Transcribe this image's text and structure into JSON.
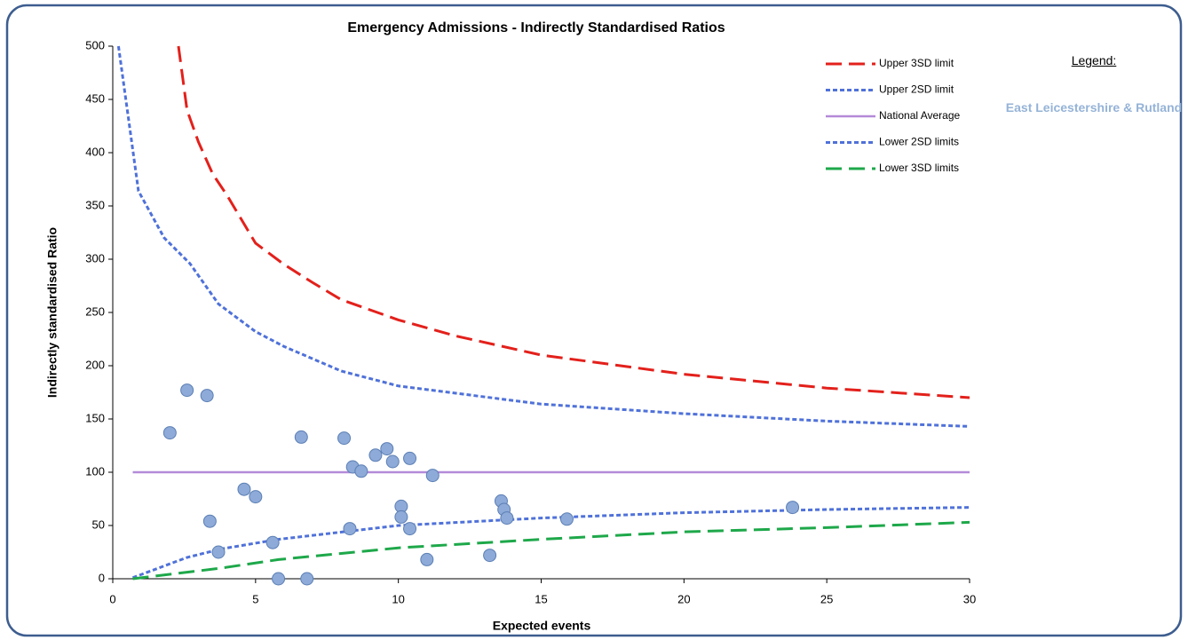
{
  "chart_data": {
    "type": "scatter",
    "title": "Emergency Admissions - Indirectly Standardised Ratios",
    "xlabel": "Expected events",
    "ylabel": "Indirectly standardised Ratio",
    "xlim": [
      0,
      30
    ],
    "xticks": [
      0,
      5,
      10,
      15,
      20,
      25,
      30
    ],
    "ylim": [
      0,
      500
    ],
    "yticks": [
      0,
      50,
      100,
      150,
      200,
      250,
      300,
      350,
      400,
      450,
      500
    ],
    "grid": false,
    "legend_position": "upper right",
    "side_legend": {
      "heading": "Legend:",
      "label": "East Leicestershire & Rutland",
      "label_color": "#95b3d7"
    },
    "series": [
      {
        "name": "Upper 3SD limit",
        "kind": "line",
        "dash": "long",
        "color": "#e3201b",
        "x": [
          2.3,
          2.6,
          3,
          3.5,
          4,
          5,
          6,
          7,
          8,
          10,
          12,
          15,
          20,
          25,
          30
        ],
        "values": [
          500,
          440,
          410,
          380,
          360,
          315,
          295,
          278,
          262,
          243,
          228,
          210,
          192,
          179,
          170
        ]
      },
      {
        "name": "Upper 2SD limit",
        "kind": "line",
        "dash": "short",
        "color": "#4f71d9",
        "x": [
          0.2,
          0.9,
          1.8,
          2.7,
          3.7,
          5,
          6,
          8,
          10,
          15,
          20,
          25,
          30
        ],
        "values": [
          500,
          364,
          320,
          296,
          258,
          232,
          218,
          195,
          181,
          164,
          155,
          148,
          143
        ]
      },
      {
        "name": "National Average",
        "kind": "line",
        "dash": "solid",
        "color": "#b48ad8",
        "x": [
          0.7,
          30
        ],
        "values": [
          100,
          100
        ]
      },
      {
        "name": "Lower 2SD limits",
        "kind": "line",
        "dash": "short",
        "color": "#4f71d9",
        "x": [
          0.7,
          2.6,
          3.8,
          5.8,
          10,
          15,
          20,
          25,
          30
        ],
        "values": [
          1,
          20,
          28,
          37,
          50,
          57,
          62,
          65,
          67
        ]
      },
      {
        "name": "Lower 3SD limits",
        "kind": "line",
        "dash": "long",
        "color": "#1ea84a",
        "x": [
          0.7,
          3.8,
          5.8,
          10,
          15,
          20,
          25,
          30
        ],
        "values": [
          0,
          10,
          18,
          29,
          37,
          44,
          48,
          53
        ]
      },
      {
        "kind": "points",
        "color": "#8eaad8",
        "edge": "#5b7fb5",
        "x": [
          2.0,
          2.6,
          3.3,
          3.4,
          3.7,
          4.6,
          5.0,
          5.6,
          5.8,
          6.6,
          6.8,
          8.1,
          8.3,
          8.4,
          8.7,
          9.2,
          9.6,
          9.8,
          10.1,
          10.1,
          10.4,
          10.4,
          11.0,
          11.2,
          13.2,
          13.6,
          13.7,
          13.8,
          15.9,
          23.8
        ],
        "values": [
          137,
          177,
          172,
          54,
          25,
          84,
          77,
          34,
          0,
          133,
          0,
          132,
          47,
          105,
          101,
          116,
          122,
          110,
          68,
          58,
          113,
          47,
          18,
          97,
          22,
          73,
          65,
          57,
          56,
          67
        ]
      }
    ]
  }
}
